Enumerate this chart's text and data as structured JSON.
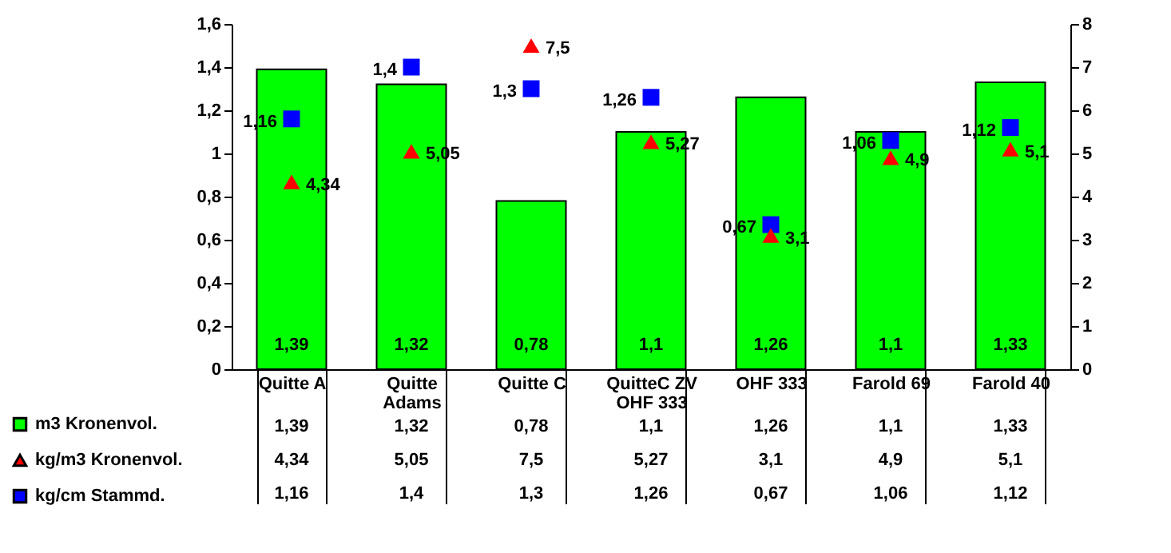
{
  "chart_data": {
    "type": "bar",
    "categories": [
      "Quitte A",
      "Quitte Adams",
      "Quitte C",
      "QuitteC ZV OHF 333",
      "OHF 333",
      "Farold 69",
      "Farold 40"
    ],
    "series": [
      {
        "name": "m3 Kronenvol.",
        "color": "#00ff00",
        "values": [
          1.39,
          1.32,
          0.78,
          1.1,
          1.26,
          1.1,
          1.33
        ],
        "value_labels": [
          "1,39",
          "1,32",
          "0,78",
          "1,1",
          "1,26",
          "1,1",
          "1,33"
        ]
      },
      {
        "name": "kg/m3 Kronenvol.",
        "type": "scatter",
        "marker": "triangle",
        "axis": "y2",
        "color": "#ff0000",
        "values": [
          4.34,
          5.05,
          7.5,
          5.27,
          3.1,
          4.9,
          5.1
        ],
        "value_labels": [
          "4,34",
          "5,05",
          "7,5",
          "5,27",
          "3,1",
          "4,9",
          "5,1"
        ]
      },
      {
        "name": "kg/cm Stammd.",
        "type": "scatter",
        "marker": "square",
        "color": "#0000ff",
        "values": [
          1.16,
          1.4,
          1.3,
          1.26,
          0.67,
          1.06,
          1.12
        ],
        "value_labels": [
          "1,16",
          "1,4",
          "1,3",
          "1,26",
          "0,67",
          "1,06",
          "1,12"
        ]
      }
    ],
    "ylim": [
      0,
      1.6
    ],
    "yticks": [
      0,
      {
        "value": 0.2,
        "label": "0,2"
      },
      {
        "value": 0.4,
        "label": "0,4"
      },
      {
        "value": 0.6,
        "label": "0,6"
      },
      {
        "value": 0.8,
        "label": "0,8"
      },
      1,
      {
        "value": 1.2,
        "label": "1,2"
      },
      {
        "value": 1.4,
        "label": "1,4"
      },
      {
        "value": 1.6,
        "label": "1,6"
      }
    ],
    "y2lim": [
      0,
      8
    ],
    "y2ticks": [
      0,
      1,
      2,
      3,
      4,
      5,
      6,
      7,
      8
    ],
    "legend": "bottom left"
  }
}
